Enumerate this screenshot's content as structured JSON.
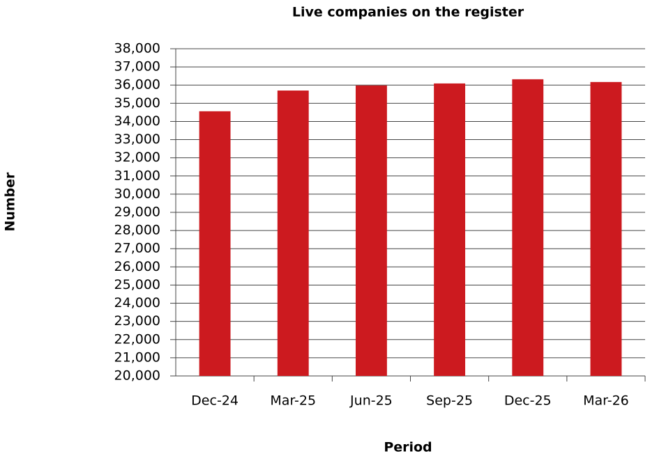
{
  "chart_data": {
    "type": "bar",
    "title": "Live companies on the register",
    "x_label": "Period",
    "y_label": "Number",
    "categories": [
      "Dec-24",
      "Mar-25",
      "Jun-25",
      "Sep-25",
      "Dec-25",
      "Mar-26"
    ],
    "values": [
      34560,
      35700,
      35980,
      36090,
      36320,
      36170
    ],
    "color": "#cc1a1f",
    "ylim": [
      20000,
      38000
    ],
    "yticks": [
      {
        "value": 20000,
        "label": "20,000"
      },
      {
        "value": 21000,
        "label": "21,000"
      },
      {
        "value": 22000,
        "label": "22,000"
      },
      {
        "value": 23000,
        "label": "23,000"
      },
      {
        "value": 24000,
        "label": "24,000"
      },
      {
        "value": 25000,
        "label": "25,000"
      },
      {
        "value": 26000,
        "label": "26,000"
      },
      {
        "value": 27000,
        "label": "27,000"
      },
      {
        "value": 28000,
        "label": "28,000"
      },
      {
        "value": 29000,
        "label": "29,000"
      },
      {
        "value": 30000,
        "label": "30,000"
      },
      {
        "value": 31000,
        "label": "31,000"
      },
      {
        "value": 32000,
        "label": "32,000"
      },
      {
        "value": 33000,
        "label": "33,000"
      },
      {
        "value": 34000,
        "label": "34,000"
      },
      {
        "value": 35000,
        "label": "35,000"
      },
      {
        "value": 36000,
        "label": "36,000"
      },
      {
        "value": 37000,
        "label": "37,000"
      },
      {
        "value": 38000,
        "label": "38,000"
      }
    ],
    "grid": true
  }
}
